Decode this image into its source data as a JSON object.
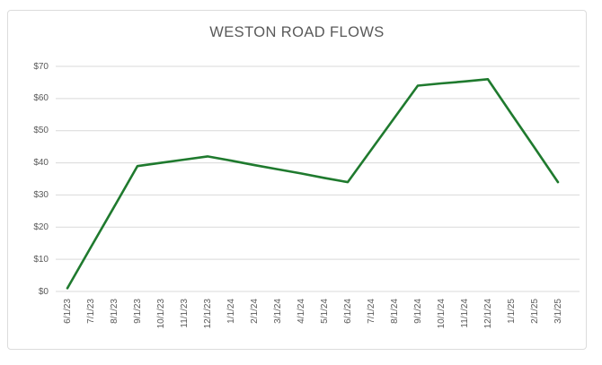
{
  "chart_data": {
    "type": "line",
    "title": "WESTON ROAD FLOWS",
    "categories": [
      "6/1/23",
      "7/1/23",
      "8/1/23",
      "9/1/23",
      "10/1/23",
      "11/1/23",
      "12/1/23",
      "1/1/24",
      "2/1/24",
      "3/1/24",
      "4/1/24",
      "5/1/24",
      "6/1/24",
      "7/1/24",
      "8/1/24",
      "9/1/24",
      "10/1/24",
      "11/1/24",
      "12/1/24",
      "1/1/25",
      "2/1/25",
      "3/1/25"
    ],
    "values": [
      1,
      13.7,
      26.3,
      39,
      40,
      41,
      42,
      40.7,
      39.3,
      38,
      36.7,
      35.3,
      34,
      44,
      54,
      64,
      64.7,
      65.3,
      66,
      55.3,
      44.7,
      34
    ],
    "xlabel": "",
    "ylabel": "",
    "ylim": [
      0,
      70
    ],
    "ytick_values": [
      0,
      10,
      20,
      30,
      40,
      50,
      60,
      70
    ],
    "ytick_labels": [
      "$0",
      "$10",
      "$20",
      "$30",
      "$40",
      "$50",
      "$60",
      "$70"
    ],
    "x_label_rotation_degrees": 90,
    "grid": true,
    "legend": "none",
    "line_color": "#1f7a2e",
    "title_color": "#595959",
    "axis_label_color": "#595959",
    "gridline_color": "#d9d9d9",
    "frame_border_color": "#dcdcdc"
  }
}
